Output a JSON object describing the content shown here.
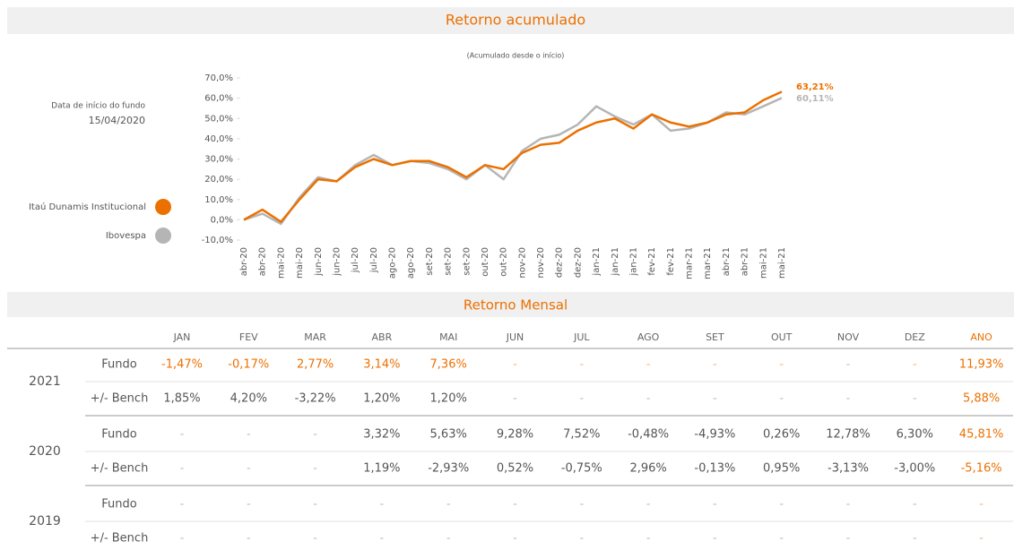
{
  "header": {
    "date_label": "Data de início do fundo",
    "date_value": "15/04/2020"
  },
  "chart_data": {
    "type": "line",
    "title": "Retorno acumulado",
    "subtitle": "(Acumulado desde o início)",
    "categories": [
      "abr-20",
      "abr-20",
      "mai-20",
      "mai-20",
      "jun-20",
      "jun-20",
      "jul-20",
      "jul-20",
      "ago-20",
      "ago-20",
      "set-20",
      "set-20",
      "set-20",
      "out-20",
      "out-20",
      "nov-20",
      "nov-20",
      "dez-20",
      "dez-20",
      "jan-21",
      "jan-21",
      "jan-21",
      "fev-21",
      "fev-21",
      "mar-21",
      "mar-21",
      "abr-21",
      "abr-21",
      "mai-21",
      "mai-21"
    ],
    "series": [
      {
        "name": "Itaú Dunamis Institucional",
        "color": "#ec7000",
        "end_label": "63,21%",
        "values": [
          0,
          5,
          -1,
          10,
          20,
          19,
          26,
          30,
          27,
          29,
          29,
          26,
          21,
          27,
          25,
          33,
          37,
          38,
          44,
          48,
          50,
          45,
          52,
          48,
          46,
          48,
          52,
          53,
          59,
          63.21
        ]
      },
      {
        "name": "Ibovespa",
        "color": "#b5b5b5",
        "end_label": "60,11%",
        "values": [
          0,
          3,
          -2,
          11,
          21,
          19,
          27,
          32,
          27,
          29,
          28,
          25,
          20,
          27,
          20,
          34,
          40,
          42,
          47,
          56,
          51,
          47,
          52,
          44,
          45,
          48,
          53,
          52,
          56,
          60.11
        ]
      }
    ],
    "ylim": [
      -10,
      70
    ],
    "yticks": [
      {
        "value": -10,
        "label": "-10,0%"
      },
      {
        "value": 0,
        "label": "0,0%"
      },
      {
        "value": 10,
        "label": "10,0%"
      },
      {
        "value": 20,
        "label": "20,0%"
      },
      {
        "value": 30,
        "label": "30,0%"
      },
      {
        "value": 40,
        "label": "40,0%"
      },
      {
        "value": 50,
        "label": "50,0%"
      },
      {
        "value": 60,
        "label": "60,0%"
      },
      {
        "value": 70,
        "label": "70,0%"
      }
    ],
    "grid": false
  },
  "table": {
    "title": "Retorno Mensal",
    "columns": [
      "JAN",
      "FEV",
      "MAR",
      "ABR",
      "MAI",
      "JUN",
      "JUL",
      "AGO",
      "SET",
      "OUT",
      "NOV",
      "DEZ",
      "ANO"
    ],
    "groups": [
      {
        "year": "2021",
        "rows": [
          {
            "label": "Fundo",
            "cells": [
              "-1,47%",
              "-0,17%",
              "2,77%",
              "3,14%",
              "7,36%",
              "-",
              "-",
              "-",
              "-",
              "-",
              "-",
              "-",
              "11,93%"
            ]
          },
          {
            "label": "+/- Bench",
            "cells": [
              "1,85%",
              "4,20%",
              "-3,22%",
              "1,20%",
              "1,20%",
              "-",
              "-",
              "-",
              "-",
              "-",
              "-",
              "-",
              "5,88%"
            ]
          }
        ]
      },
      {
        "year": "2020",
        "rows": [
          {
            "label": "Fundo",
            "cells": [
              "-",
              "-",
              "-",
              "3,32%",
              "5,63%",
              "9,28%",
              "7,52%",
              "-0,48%",
              "-4,93%",
              "0,26%",
              "12,78%",
              "6,30%",
              "45,81%"
            ]
          },
          {
            "label": "+/- Bench",
            "cells": [
              "-",
              "-",
              "-",
              "1,19%",
              "-2,93%",
              "0,52%",
              "-0,75%",
              "2,96%",
              "-0,13%",
              "0,95%",
              "-3,13%",
              "-3,00%",
              "-5,16%"
            ]
          }
        ]
      },
      {
        "year": "2019",
        "rows": [
          {
            "label": "Fundo",
            "cells": [
              "-",
              "-",
              "-",
              "-",
              "-",
              "-",
              "-",
              "-",
              "-",
              "-",
              "-",
              "-",
              "-"
            ]
          },
          {
            "label": "+/- Bench",
            "cells": [
              "-",
              "-",
              "-",
              "-",
              "-",
              "-",
              "-",
              "-",
              "-",
              "-",
              "-",
              "-",
              "-"
            ]
          }
        ]
      }
    ]
  }
}
